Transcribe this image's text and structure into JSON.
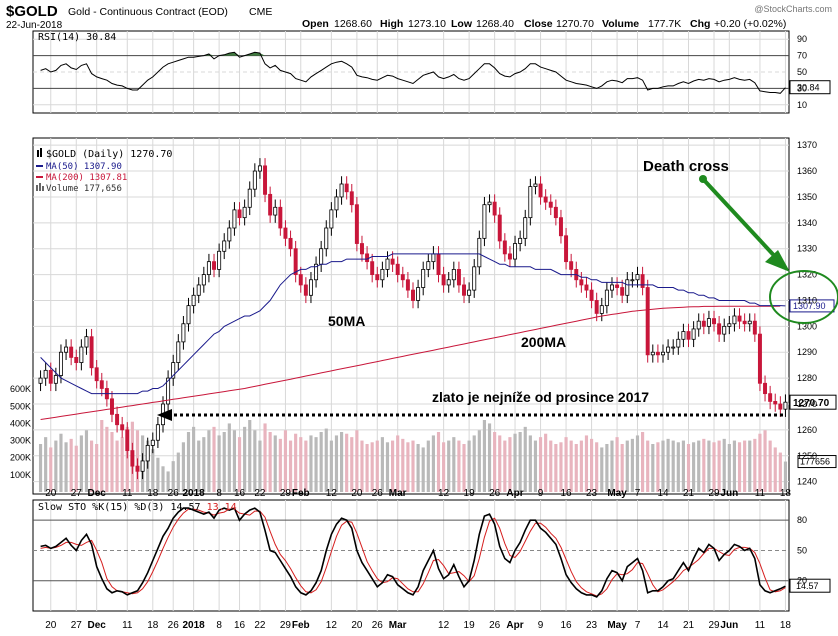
{
  "header": {
    "symbol": "$GOLD",
    "name": "Gold - Continuous Contract (EOD)",
    "exchange": "CME",
    "date": "22-Jun-2018",
    "open_label": "Open",
    "open": "1268.60",
    "high_label": "High",
    "high": "1273.10",
    "low_label": "Low",
    "low": "1268.40",
    "close_label": "Close",
    "close": "1270.70",
    "volume_label": "Volume",
    "volume": "177.7K",
    "chg_label": "Chg",
    "chg": "+0.20 (+0.02%)",
    "watermark": "@StockCharts.com"
  },
  "colors": {
    "up": "#ffffff",
    "down": "#c8163a",
    "candle_outline": "#000000",
    "ma50": "#1a1a8c",
    "ma200": "#c8163a",
    "volume_up": "#b9b9b9",
    "volume_down": "#e8b4be",
    "annotation": "#1f8a1f",
    "sto_k": "#000000",
    "sto_d": "#d61f1f",
    "grid": "#d8d8d8"
  },
  "rsi_panel": {
    "label": "RSI(14) 30.84",
    "levels": [
      "90",
      "70",
      "50",
      "30",
      "10"
    ],
    "last": "30.84"
  },
  "price_panel": {
    "legend": [
      {
        "text": "$GOLD (Daily) 1270.70",
        "icon": "candle-icon"
      },
      {
        "text": "MA(50) 1307.90",
        "icon": "line-icon"
      },
      {
        "text": "MA(200) 1307.81",
        "icon": "line-icon"
      },
      {
        "text": "Volume 177,656",
        "icon": "bars-icon"
      }
    ],
    "price_ticks": [
      "1370",
      "1360",
      "1350",
      "1340",
      "1330",
      "1320",
      "1310",
      "1300",
      "1290",
      "1280",
      "1270",
      "1260",
      "1250",
      "1240"
    ],
    "volume_ticks": [
      "600K",
      "500K",
      "400K",
      "300K",
      "200K",
      "100K"
    ],
    "last_price": "1270.70",
    "ma_value": "1307.90",
    "last_volume": "177656",
    "annotations": {
      "death_cross": "Death cross",
      "ma50": "50MA",
      "ma200": "200MA",
      "support": "zlato je nejníže od prosince 2017"
    }
  },
  "sto_panel": {
    "label_prefix": "Slow STO %K(15) %D(3) ",
    "k": "14.57",
    "d": "13.14",
    "levels": [
      "80",
      "50",
      "20"
    ],
    "last": "14.57"
  },
  "x_axis": {
    "labels": [
      {
        "t": "20",
        "i": 2
      },
      {
        "t": "27",
        "i": 7
      },
      {
        "t": "Dec",
        "i": 11,
        "b": true
      },
      {
        "t": "11",
        "i": 17
      },
      {
        "t": "18",
        "i": 22
      },
      {
        "t": "26",
        "i": 26
      },
      {
        "t": "2018",
        "i": 30,
        "b": true
      },
      {
        "t": "8",
        "i": 35
      },
      {
        "t": "16",
        "i": 39
      },
      {
        "t": "22",
        "i": 43
      },
      {
        "t": "29",
        "i": 48
      },
      {
        "t": "Feb",
        "i": 51,
        "b": true
      },
      {
        "t": "12",
        "i": 57
      },
      {
        "t": "20",
        "i": 62
      },
      {
        "t": "26",
        "i": 66
      },
      {
        "t": "Mar",
        "i": 70,
        "b": true
      },
      {
        "t": "12",
        "i": 79
      },
      {
        "t": "19",
        "i": 84
      },
      {
        "t": "26",
        "i": 89
      },
      {
        "t": "Apr",
        "i": 93,
        "b": true
      },
      {
        "t": "9",
        "i": 98
      },
      {
        "t": "16",
        "i": 103
      },
      {
        "t": "23",
        "i": 108
      },
      {
        "t": "May",
        "i": 113,
        "b": true
      },
      {
        "t": "7",
        "i": 117
      },
      {
        "t": "14",
        "i": 122
      },
      {
        "t": "21",
        "i": 127
      },
      {
        "t": "29",
        "i": 132
      },
      {
        "t": "Jun",
        "i": 135,
        "b": true
      },
      {
        "t": "11",
        "i": 141
      },
      {
        "t": "18",
        "i": 146
      }
    ]
  },
  "chart_data": {
    "type": "candlestick",
    "title": "Gold - Continuous Contract (EOD)",
    "ylim": [
      1236,
      1372
    ],
    "volume_ylim": [
      0,
      700000
    ],
    "closes": [
      1280,
      1283,
      1278,
      1281,
      1290,
      1292,
      1288,
      1286,
      1292,
      1296,
      1284,
      1279,
      1276,
      1272,
      1266,
      1262,
      1260,
      1252,
      1246,
      1244,
      1248,
      1254,
      1256,
      1262,
      1270,
      1280,
      1286,
      1294,
      1301,
      1308,
      1312,
      1316,
      1320,
      1325,
      1322,
      1329,
      1333,
      1338,
      1345,
      1342,
      1346,
      1353,
      1360,
      1362,
      1351,
      1343,
      1346,
      1338,
      1334,
      1330,
      1320,
      1316,
      1312,
      1318,
      1324,
      1330,
      1338,
      1345,
      1350,
      1355,
      1352,
      1347,
      1332,
      1328,
      1325,
      1320,
      1318,
      1322,
      1326,
      1324,
      1320,
      1318,
      1314,
      1310,
      1315,
      1322,
      1325,
      1328,
      1320,
      1316,
      1318,
      1322,
      1316,
      1312,
      1314,
      1323,
      1334,
      1347,
      1348,
      1343,
      1333,
      1328,
      1326,
      1332,
      1334,
      1342,
      1354,
      1355,
      1350,
      1348,
      1346,
      1342,
      1335,
      1325,
      1322,
      1318,
      1316,
      1314,
      1310,
      1305,
      1308,
      1314,
      1316,
      1315,
      1312,
      1318,
      1318,
      1320,
      1315,
      1289,
      1290,
      1289,
      1290,
      1292,
      1292,
      1295,
      1298,
      1295,
      1299,
      1302,
      1300,
      1303,
      1301,
      1297,
      1300,
      1301,
      1304,
      1302,
      1301,
      1302,
      1297,
      1278,
      1274,
      1271,
      1270,
      1268,
      1270.7
    ],
    "ma50": [
      1288,
      1286,
      1284,
      1282,
      1280,
      1279,
      1278,
      1277,
      1276,
      1275,
      1274,
      1274,
      1274,
      1274,
      1274,
      1274,
      1274,
      1274,
      1274,
      1274,
      1275,
      1275,
      1276,
      1276,
      1277,
      1279,
      1281,
      1283,
      1285,
      1287,
      1289,
      1291,
      1293,
      1295,
      1297,
      1298,
      1300,
      1301,
      1302,
      1303,
      1304,
      1304,
      1305,
      1306,
      1308,
      1310,
      1313,
      1316,
      1318,
      1320,
      1321,
      1322,
      1322,
      1323,
      1323,
      1324,
      1324,
      1325,
      1325,
      1325,
      1326,
      1326,
      1326,
      1326,
      1326,
      1327,
      1327,
      1327,
      1327,
      1328,
      1328,
      1328,
      1328,
      1328,
      1328,
      1328,
      1328,
      1328,
      1328,
      1328,
      1328,
      1328,
      1328,
      1328,
      1328,
      1328,
      1328,
      1327,
      1326,
      1325,
      1324,
      1324,
      1323,
      1323,
      1323,
      1323,
      1323,
      1322,
      1322,
      1322,
      1322,
      1321,
      1320,
      1320,
      1320,
      1320,
      1319,
      1319,
      1318,
      1318,
      1317,
      1317,
      1317,
      1317,
      1317,
      1316,
      1316,
      1316,
      1316,
      1316,
      1316,
      1315,
      1315,
      1315,
      1315,
      1314,
      1314,
      1313,
      1313,
      1312,
      1312,
      1311,
      1311,
      1310,
      1310,
      1310,
      1310,
      1310,
      1310,
      1309,
      1309,
      1308,
      1308,
      1308,
      1308,
      1308,
      1307.9
    ],
    "ma200": [
      1264,
      1264.3,
      1264.6,
      1264.9,
      1265.2,
      1265.5,
      1265.8,
      1266.1,
      1266.4,
      1266.7,
      1267,
      1267.3,
      1267.6,
      1267.9,
      1268.2,
      1268.5,
      1268.8,
      1269.1,
      1269.4,
      1269.7,
      1270,
      1270.3,
      1270.6,
      1270.9,
      1271.2,
      1271.5,
      1271.8,
      1272.1,
      1272.4,
      1272.7,
      1273,
      1273.3,
      1273.6,
      1273.9,
      1274.2,
      1274.5,
      1274.8,
      1275.1,
      1275.4,
      1275.7,
      1276,
      1276.4,
      1276.8,
      1277.2,
      1277.6,
      1278,
      1278.4,
      1278.8,
      1279.2,
      1279.6,
      1280,
      1280.4,
      1280.8,
      1281.2,
      1281.6,
      1282,
      1282.4,
      1282.8,
      1283.2,
      1283.6,
      1284,
      1284.4,
      1284.8,
      1285.2,
      1285.6,
      1286,
      1286.4,
      1286.8,
      1287.2,
      1287.6,
      1288,
      1288.4,
      1288.8,
      1289.2,
      1289.6,
      1290,
      1290.4,
      1290.8,
      1291.2,
      1291.6,
      1292,
      1292.4,
      1292.8,
      1293.2,
      1293.6,
      1294,
      1294.4,
      1294.8,
      1295.2,
      1295.6,
      1296,
      1296.4,
      1296.8,
      1297.2,
      1297.6,
      1298,
      1298.4,
      1298.8,
      1299.2,
      1299.6,
      1300,
      1300.4,
      1300.8,
      1301.2,
      1301.6,
      1302,
      1302.4,
      1302.8,
      1303.2,
      1303.6,
      1304,
      1304.3,
      1304.6,
      1304.9,
      1305.2,
      1305.5,
      1305.8,
      1306,
      1306.2,
      1306.4,
      1306.6,
      1306.8,
      1307,
      1307.1,
      1307.2,
      1307.3,
      1307.4,
      1307.5,
      1307.6,
      1307.6,
      1307.7,
      1307.7,
      1307.7,
      1307.8,
      1307.8,
      1307.8,
      1307.8,
      1307.8,
      1307.8,
      1307.8,
      1307.8,
      1307.8,
      1307.8,
      1307.8,
      1307.8,
      1307.81
    ],
    "volume": [
      280000,
      320000,
      260000,
      300000,
      340000,
      290000,
      310000,
      270000,
      330000,
      360000,
      300000,
      280000,
      420000,
      380000,
      350000,
      300000,
      320000,
      380000,
      410000,
      360000,
      330000,
      300000,
      250000,
      200000,
      150000,
      120000,
      180000,
      230000,
      290000,
      350000,
      380000,
      300000,
      320000,
      360000,
      380000,
      330000,
      350000,
      400000,
      360000,
      320000,
      380000,
      420000,
      360000,
      300000,
      400000,
      350000,
      330000,
      310000,
      360000,
      300000,
      340000,
      320000,
      300000,
      330000,
      320000,
      350000,
      370000,
      300000,
      330000,
      350000,
      340000,
      320000,
      360000,
      300000,
      280000,
      290000,
      300000,
      320000,
      290000,
      300000,
      330000,
      310000,
      290000,
      300000,
      280000,
      260000,
      300000,
      330000,
      350000,
      290000,
      300000,
      320000,
      300000,
      280000,
      300000,
      330000,
      360000,
      420000,
      400000,
      350000,
      330000,
      300000,
      320000,
      340000,
      350000,
      380000,
      330000,
      300000,
      320000,
      340000,
      300000,
      280000,
      290000,
      320000,
      300000,
      280000,
      300000,
      330000,
      310000,
      290000,
      260000,
      280000,
      300000,
      320000,
      280000,
      300000,
      310000,
      330000,
      350000,
      300000,
      280000,
      290000,
      300000,
      310000,
      300000,
      290000,
      300000,
      280000,
      290000,
      300000,
      310000,
      300000,
      290000,
      300000,
      310000,
      280000,
      300000,
      290000,
      300000,
      300000,
      310000,
      340000,
      360000,
      300000,
      260000,
      230000,
      177656
    ],
    "rsi": [
      52,
      54,
      50,
      52,
      58,
      60,
      55,
      53,
      58,
      60,
      48,
      44,
      42,
      40,
      36,
      34,
      33,
      30,
      28,
      28,
      34,
      40,
      44,
      50,
      56,
      60,
      62,
      64,
      66,
      68,
      68,
      69,
      70,
      72,
      66,
      70,
      71,
      73,
      74,
      68,
      70,
      72,
      74,
      73,
      60,
      55,
      58,
      52,
      50,
      48,
      42,
      40,
      38,
      44,
      48,
      52,
      56,
      60,
      62,
      63,
      60,
      56,
      46,
      44,
      43,
      41,
      40,
      43,
      46,
      45,
      42,
      40,
      38,
      36,
      41,
      46,
      48,
      50,
      44,
      42,
      44,
      47,
      42,
      40,
      42,
      48,
      54,
      60,
      60,
      55,
      48,
      45,
      44,
      48,
      50,
      54,
      60,
      60,
      56,
      54,
      52,
      50,
      45,
      40,
      38,
      36,
      35,
      34,
      32,
      30,
      33,
      38,
      40,
      39,
      37,
      42,
      42,
      43,
      40,
      28,
      30,
      30,
      32,
      33,
      33,
      36,
      38,
      36,
      39,
      41,
      40,
      42,
      41,
      38,
      40,
      41,
      43,
      41,
      40,
      41,
      37,
      27,
      26,
      25,
      25,
      24,
      30.84
    ],
    "sto_k": [
      54,
      55,
      52,
      54,
      58,
      62,
      55,
      50,
      60,
      66,
      56,
      34,
      22,
      12,
      8,
      10,
      9,
      6,
      8,
      10,
      18,
      28,
      40,
      52,
      64,
      72,
      82,
      88,
      92,
      92,
      90,
      88,
      86,
      88,
      82,
      90,
      92,
      90,
      92,
      80,
      86,
      90,
      92,
      88,
      70,
      50,
      48,
      40,
      32,
      24,
      14,
      8,
      6,
      10,
      18,
      30,
      50,
      66,
      76,
      82,
      80,
      72,
      50,
      38,
      30,
      22,
      14,
      18,
      26,
      24,
      16,
      12,
      8,
      6,
      14,
      30,
      40,
      50,
      32,
      22,
      26,
      36,
      24,
      14,
      20,
      40,
      66,
      84,
      86,
      76,
      54,
      42,
      38,
      50,
      58,
      70,
      80,
      80,
      72,
      68,
      62,
      56,
      42,
      26,
      18,
      12,
      8,
      6,
      6,
      4,
      10,
      22,
      30,
      28,
      20,
      34,
      38,
      42,
      30,
      8,
      10,
      10,
      14,
      20,
      22,
      30,
      38,
      30,
      42,
      52,
      48,
      56,
      52,
      40,
      46,
      50,
      56,
      54,
      50,
      52,
      42,
      16,
      10,
      8,
      10,
      12,
      14.57
    ],
    "sto_d": [
      52,
      53,
      52,
      53,
      55,
      58,
      58,
      56,
      55,
      58,
      60,
      50,
      38,
      22,
      14,
      10,
      9,
      8,
      7,
      8,
      12,
      19,
      29,
      40,
      52,
      63,
      73,
      81,
      87,
      91,
      91,
      90,
      88,
      87,
      85,
      87,
      88,
      91,
      91,
      87,
      86,
      85,
      89,
      89,
      83,
      69,
      56,
      46,
      40,
      32,
      23,
      15,
      9,
      8,
      11,
      19,
      33,
      49,
      64,
      75,
      79,
      78,
      67,
      53,
      39,
      30,
      22,
      18,
      19,
      23,
      22,
      17,
      12,
      9,
      9,
      17,
      28,
      40,
      41,
      35,
      27,
      28,
      29,
      25,
      19,
      25,
      42,
      63,
      79,
      82,
      72,
      57,
      45,
      43,
      49,
      59,
      69,
      77,
      77,
      73,
      67,
      62,
      53,
      41,
      29,
      19,
      13,
      9,
      7,
      5,
      7,
      12,
      21,
      27,
      26,
      27,
      31,
      38,
      37,
      27,
      16,
      9,
      11,
      15,
      19,
      24,
      30,
      33,
      37,
      41,
      47,
      52,
      52,
      49,
      46,
      45,
      51,
      53,
      53,
      52,
      48,
      37,
      23,
      11,
      9,
      10,
      13.14
    ]
  }
}
